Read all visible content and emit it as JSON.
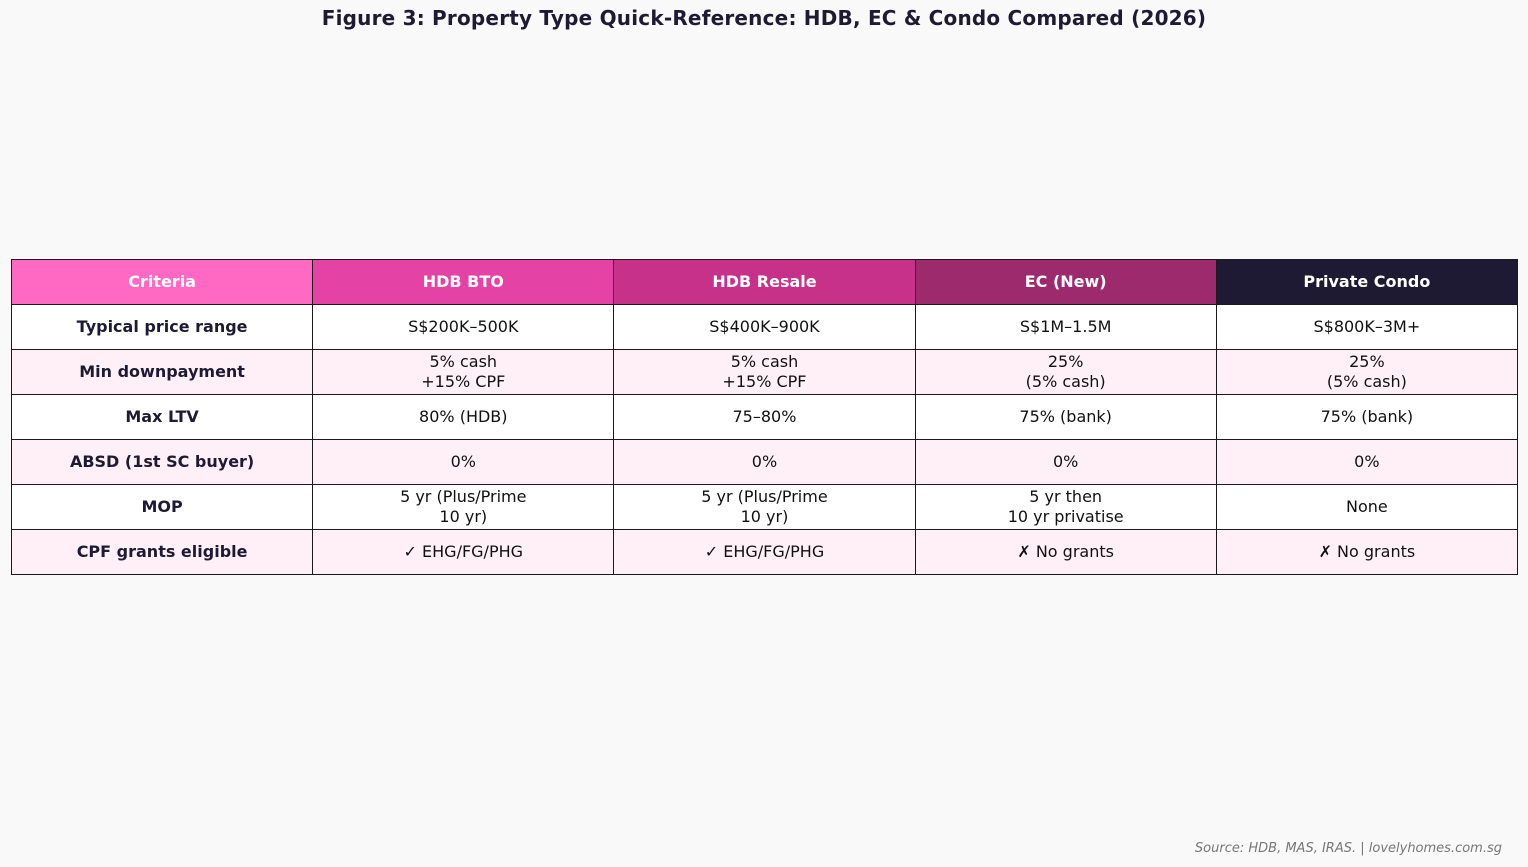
{
  "chart_data": {
    "type": "table",
    "title": "Figure 3: Property Type Quick-Reference: HDB, EC & Condo Compared (2026)",
    "header_colors": [
      "#ff69c4",
      "#e542a6",
      "#c8318a",
      "#9c2a6d",
      "#1e1a33"
    ],
    "row_colors": [
      "#ffffff",
      "#fff0f8"
    ],
    "columns": [
      "Criteria",
      "HDB BTO",
      "HDB Resale",
      "EC (New)",
      "Private Condo"
    ],
    "rows": [
      {
        "criteria": "Typical price range",
        "cells": [
          [
            "S$200K–500K"
          ],
          [
            "S$400K–900K"
          ],
          [
            "S$1M–1.5M"
          ],
          [
            "S$800K–3M+"
          ]
        ]
      },
      {
        "criteria": "Min downpayment",
        "cells": [
          [
            "5% cash",
            "+15% CPF"
          ],
          [
            "5% cash",
            "+15% CPF"
          ],
          [
            "25%",
            "(5% cash)"
          ],
          [
            "25%",
            "(5% cash)"
          ]
        ]
      },
      {
        "criteria": "Max LTV",
        "cells": [
          [
            "80% (HDB)"
          ],
          [
            "75–80%"
          ],
          [
            "75% (bank)"
          ],
          [
            "75% (bank)"
          ]
        ]
      },
      {
        "criteria": "ABSD (1st SC buyer)",
        "cells": [
          [
            "0%"
          ],
          [
            "0%"
          ],
          [
            "0%"
          ],
          [
            "0%"
          ]
        ]
      },
      {
        "criteria": "MOP",
        "cells": [
          [
            "5 yr (Plus/Prime",
            "10 yr)"
          ],
          [
            "5 yr (Plus/Prime",
            "10 yr)"
          ],
          [
            "5 yr then",
            "10 yr privatise"
          ],
          [
            "None"
          ]
        ]
      },
      {
        "criteria": "CPF grants eligible",
        "cells": [
          [
            "✓ EHG/FG/PHG"
          ],
          [
            "✓ EHG/FG/PHG"
          ],
          [
            "✗ No grants"
          ],
          [
            "✗ No grants"
          ]
        ]
      }
    ]
  },
  "source": "Source: HDB, MAS, IRAS. | lovelyhomes.com.sg"
}
